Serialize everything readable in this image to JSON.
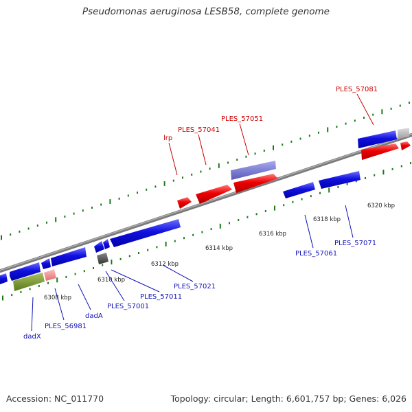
{
  "title": "Pseudomonas aeruginosa LESB58, complete genome",
  "footer": {
    "accession": "Accession: NC_011770",
    "summary": "Topology: circular; Length: 6,601,757 bp; Genes: 6,026"
  },
  "colors": {
    "forward_gene": "#e00000",
    "reverse_gene": "#0a0ad8",
    "backbone": "#8a8a8a",
    "tick": "#1a7a1a",
    "forward_label": "#cc0000",
    "reverse_label": "#1111bb",
    "scale_label": "#222222"
  },
  "tick_labels": [
    "6308 kbp",
    "6310 kbp",
    "6312 kbp",
    "6314 kbp",
    "6316 kbp",
    "6318 kbp",
    "6320 kbp"
  ],
  "forward_gene_labels": [
    "lrp",
    "PLES_57041",
    "PLES_57051",
    "PLES_57081"
  ],
  "reverse_gene_labels": [
    "dadX",
    "PLES_56981",
    "dadA",
    "PLES_57001",
    "PLES_57011",
    "PLES_57021",
    "PLES_57061",
    "PLES_57071"
  ]
}
